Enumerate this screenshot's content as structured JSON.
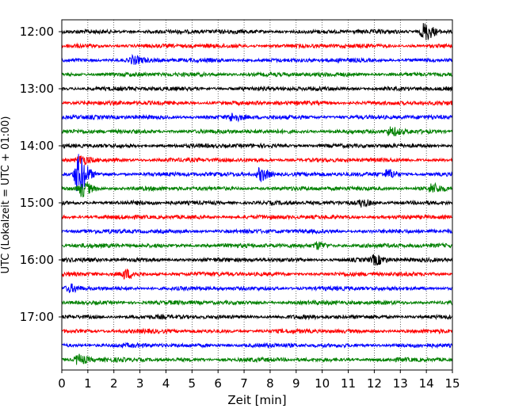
{
  "chart_data": {
    "type": "line",
    "title": "",
    "xlabel": "Zeit  [min]",
    "ylabel": "UTC (Lokalzeit = UTC + 01:00)",
    "xlim": [
      0,
      15
    ],
    "x_ticks": [
      "0",
      "1",
      "2",
      "3",
      "4",
      "5",
      "6",
      "7",
      "8",
      "9",
      "10",
      "11",
      "12",
      "13",
      "14",
      "15"
    ],
    "y_ticks": [
      "12:00",
      "13:00",
      "14:00",
      "15:00",
      "16:00",
      "17:00"
    ],
    "y_tick_rows": [
      0,
      4,
      8,
      12,
      16,
      20
    ],
    "row_interval_min": 15,
    "row_count": 24,
    "color_cycle": [
      "#000000",
      "#ff0000",
      "#0000ff",
      "#008000"
    ],
    "grid": "vertical dotted",
    "events": [
      {
        "row": 0,
        "x": 13.9,
        "amp": 11
      },
      {
        "row": 2,
        "x": 2.7,
        "amp": 4
      },
      {
        "row": 6,
        "x": 6.5,
        "amp": 4
      },
      {
        "row": 7,
        "x": 12.6,
        "amp": 5
      },
      {
        "row": 9,
        "x": 0.7,
        "amp": 5
      },
      {
        "row": 10,
        "x": 0.6,
        "amp": 24
      },
      {
        "row": 10,
        "x": 7.6,
        "amp": 8
      },
      {
        "row": 10,
        "x": 12.5,
        "amp": 5
      },
      {
        "row": 11,
        "x": 0.75,
        "amp": 9
      },
      {
        "row": 11,
        "x": 14.2,
        "amp": 5
      },
      {
        "row": 12,
        "x": 11.5,
        "amp": 4
      },
      {
        "row": 15,
        "x": 9.8,
        "amp": 4
      },
      {
        "row": 16,
        "x": 12.0,
        "amp": 5
      },
      {
        "row": 17,
        "x": 2.4,
        "amp": 5
      },
      {
        "row": 18,
        "x": 0.3,
        "amp": 4
      },
      {
        "row": 23,
        "x": 0.6,
        "amp": 6
      }
    ]
  }
}
